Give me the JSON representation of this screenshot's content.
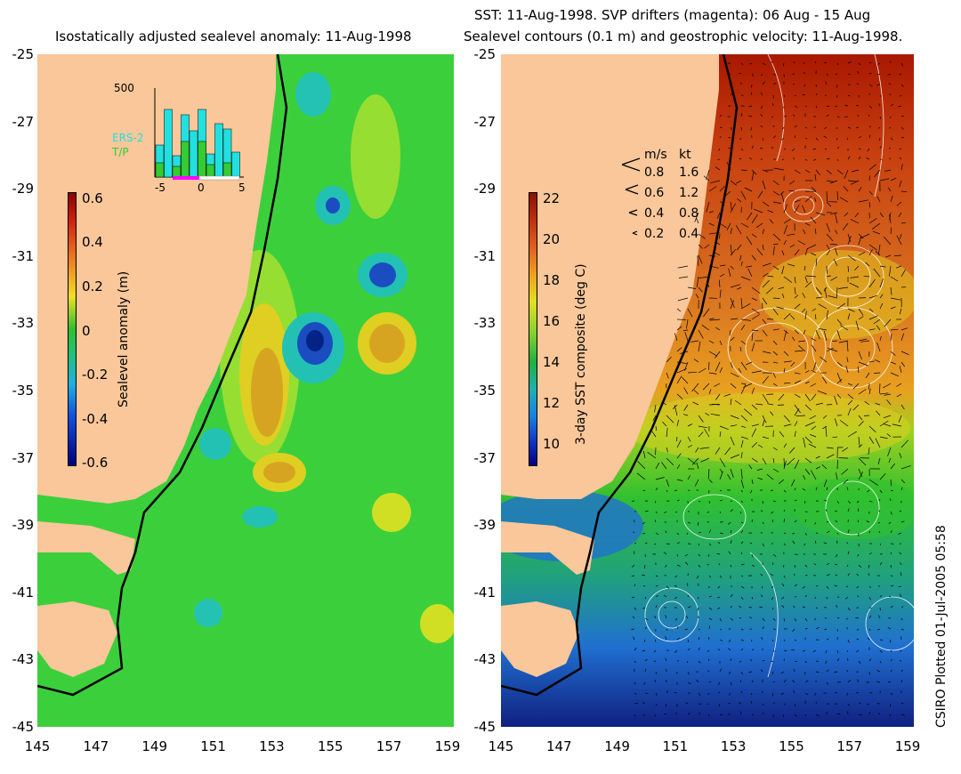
{
  "left_panel": {
    "title": "Isostatically adjusted sealevel anomaly: 11-Aug-1998",
    "colorbar": {
      "label": "Sealevel anomaly (m)",
      "ticks": [
        "0.6",
        "0.4",
        "0.2",
        "0",
        "-0.2",
        "-0.4",
        "-0.6"
      ],
      "range": [
        -0.6,
        0.6
      ]
    },
    "inset": {
      "ymax_label": "500",
      "series": [
        "ERS-2",
        "T/P"
      ],
      "series_colors": [
        "#22e0e0",
        "#33cc33"
      ],
      "x_ticks": [
        "-5",
        "0",
        "5"
      ],
      "ers2_counts": [
        180,
        380,
        120,
        350,
        260,
        380,
        130,
        300,
        270,
        140
      ],
      "tp_counts": [
        80,
        0,
        60,
        200,
        0,
        200,
        70,
        0,
        80,
        0
      ]
    }
  },
  "right_panel": {
    "title_line1": "SST: 11-Aug-1998. SVP drifters (magenta): 06 Aug - 15 Aug",
    "title_line2": "Sealevel contours (0.1 m) and geostrophic velocity: 11-Aug-1998.",
    "colorbar": {
      "label": "3-day SST composite (deg C)",
      "ticks": [
        "22",
        "20",
        "18",
        "16",
        "14",
        "12",
        "10"
      ],
      "range": [
        9,
        22
      ]
    },
    "velocity_legend": {
      "header_ms": "m/s",
      "header_kt": "kt",
      "rows": [
        {
          "ms": "0.8",
          "kt": "1.6"
        },
        {
          "ms": "0.6",
          "kt": "1.2"
        },
        {
          "ms": "0.4",
          "kt": "0.8"
        },
        {
          "ms": "0.2",
          "kt": "0.4"
        }
      ]
    }
  },
  "axes": {
    "lat_ticks": [
      "-25",
      "-27",
      "-29",
      "-31",
      "-33",
      "-35",
      "-37",
      "-39",
      "-41",
      "-43",
      "-45"
    ],
    "lon_ticks": [
      "145",
      "147",
      "149",
      "151",
      "153",
      "155",
      "157",
      "159"
    ]
  },
  "credit": "CSIRO Plotted 01-Jul-2005 05:58",
  "colors": {
    "land": "#f9c79a",
    "sea_green": "#33cc33",
    "warm_orange": "#e8a020",
    "cold_blue": "#1840d0"
  }
}
